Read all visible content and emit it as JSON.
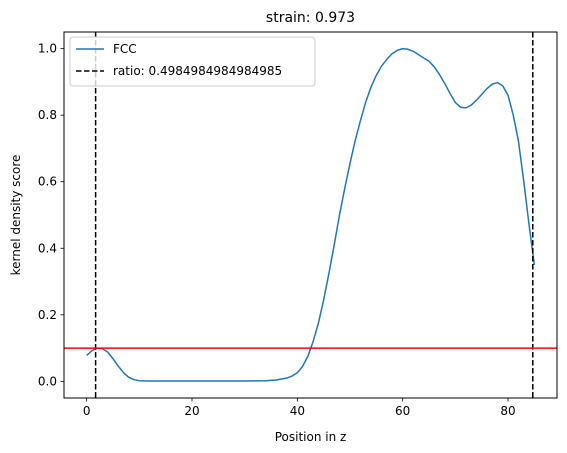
{
  "chart_data": {
    "type": "line",
    "title": "strain: 0.973",
    "xlabel": "Position in z",
    "ylabel": "kernel density score",
    "xlim": [
      -4.3,
      89.3
    ],
    "ylim": [
      -0.05,
      1.05
    ],
    "xticks": [
      0,
      20,
      40,
      60,
      80
    ],
    "yticks": [
      0.0,
      0.2,
      0.4,
      0.6,
      0.8,
      1.0
    ],
    "xtick_labels": [
      "0",
      "20",
      "40",
      "60",
      "80"
    ],
    "ytick_labels": [
      "0.0",
      "0.2",
      "0.4",
      "0.6",
      "0.8",
      "1.0"
    ],
    "grid": false,
    "legend_position": "top-left",
    "series": [
      {
        "name": "FCC",
        "color": "#1f77b4",
        "x": [
          0,
          1,
          2,
          3,
          4,
          5,
          6,
          7,
          8,
          9,
          10,
          12,
          15,
          20,
          25,
          30,
          34,
          36,
          38,
          39,
          40,
          41,
          42,
          43,
          44,
          45,
          46,
          47,
          48,
          49,
          50,
          51,
          52,
          53,
          54,
          55,
          56,
          57,
          58,
          59,
          60,
          61,
          62,
          63,
          64,
          65,
          66,
          67,
          68,
          69,
          70,
          71,
          72,
          73,
          74,
          75,
          76,
          77,
          78,
          79,
          80,
          81,
          82,
          83,
          84,
          85
        ],
        "y": [
          0.078,
          0.092,
          0.1,
          0.098,
          0.088,
          0.068,
          0.046,
          0.026,
          0.012,
          0.005,
          0.002,
          0.001,
          0.001,
          0.001,
          0.001,
          0.001,
          0.002,
          0.004,
          0.01,
          0.016,
          0.026,
          0.045,
          0.075,
          0.12,
          0.175,
          0.245,
          0.325,
          0.41,
          0.5,
          0.58,
          0.655,
          0.725,
          0.785,
          0.84,
          0.885,
          0.92,
          0.948,
          0.968,
          0.985,
          0.995,
          1.0,
          0.998,
          0.992,
          0.982,
          0.972,
          0.962,
          0.945,
          0.922,
          0.895,
          0.865,
          0.838,
          0.824,
          0.822,
          0.83,
          0.845,
          0.862,
          0.88,
          0.893,
          0.898,
          0.888,
          0.86,
          0.8,
          0.72,
          0.6,
          0.47,
          0.35
        ]
      }
    ],
    "vlines": [
      {
        "label": "ratio: 0.4984984984984985",
        "x": 1.7,
        "color": "#000000",
        "style": "dashed"
      },
      {
        "x": 84.7,
        "color": "#000000",
        "style": "dashed"
      }
    ],
    "hline": {
      "y": 0.1,
      "color": "#ff0000"
    }
  }
}
